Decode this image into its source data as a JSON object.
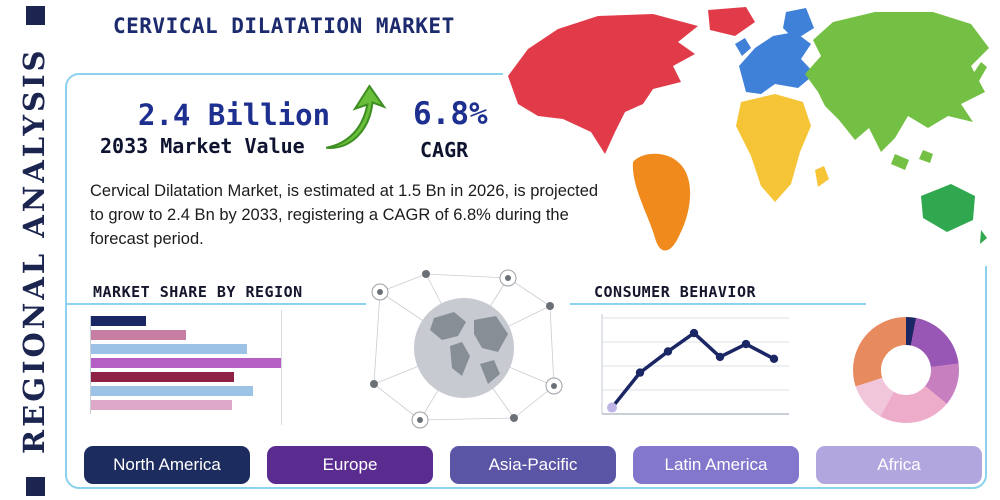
{
  "title": "CERVICAL DILATATION MARKET",
  "side_label": "REGIONAL ANALYSIS",
  "stats": {
    "market_value": "2.4 Billion",
    "market_value_label": "2033 Market Value",
    "cagr_value": "6.8%",
    "cagr_label": "CAGR"
  },
  "description": "Cervical Dilatation Market, is estimated at 1.5 Bn in 2026, is projected to grow to 2.4 Bn by 2033, registering a CAGR of 6.8% during the forecast period.",
  "sections": {
    "market_share_title": "MARKET SHARE BY REGION",
    "consumer_behavior_title": "CONSUMER BEHAVIOR"
  },
  "map": {
    "colors": {
      "north_america": "#e13b4a",
      "greenland": "#e13b4a",
      "south_america": "#f08a1d",
      "europe": "#3f80d8",
      "uk": "#3f80d8",
      "scandinavia": "#3f80d8",
      "africa": "#f6c437",
      "madagascar": "#f6c437",
      "asia": "#74c044",
      "se_asia_1": "#74c044",
      "se_asia_2": "#74c044",
      "japan": "#74c044",
      "australia": "#2fa84f",
      "new_zealand": "#2fa84f"
    }
  },
  "accent_colors": {
    "frame_border": "#8ad2ee",
    "navy": "#1b2550",
    "growth_arrow_green": "#6abf3a"
  },
  "chart_data": [
    {
      "type": "bar",
      "title": "MARKET SHARE BY REGION",
      "orientation": "horizontal",
      "labels_visible": false,
      "values": [
        29,
        50,
        82,
        100,
        75,
        85,
        74
      ],
      "colors": [
        "#1b2664",
        "#c87da3",
        "#9cc3e6",
        "#b55fc5",
        "#8e2346",
        "#9cc3e6",
        "#dea8c8"
      ],
      "xlim": [
        0,
        100
      ]
    },
    {
      "type": "line",
      "title": "CONSUMER BEHAVIOR",
      "labels_visible": false,
      "x": [
        1,
        2,
        3,
        4,
        5,
        6,
        7
      ],
      "values": [
        7,
        45,
        68,
        88,
        62,
        76,
        60
      ],
      "ylim": [
        0,
        100
      ],
      "color": "#1b2664",
      "first_point_color": "#c0b3e6",
      "grid": true
    },
    {
      "type": "pie",
      "subtype": "donut",
      "labels_visible": false,
      "slices": [
        {
          "value": 3,
          "color": "#1b2664"
        },
        {
          "value": 20,
          "color": "#9957b5"
        },
        {
          "value": 13,
          "color": "#c77fc0"
        },
        {
          "value": 22,
          "color": "#eeaccb"
        },
        {
          "value": 12,
          "color": "#f2c6da"
        },
        {
          "value": 30,
          "color": "#e78a5e"
        }
      ]
    }
  ],
  "region_buttons": [
    {
      "label": "North America",
      "color": "#1d2c5f"
    },
    {
      "label": "Europe",
      "color": "#5a2c90"
    },
    {
      "label": "Asia-Pacific",
      "color": "#5a55a5"
    },
    {
      "label": "Latin America",
      "color": "#8276cd"
    },
    {
      "label": "Africa",
      "color": "#b2a6df"
    }
  ]
}
